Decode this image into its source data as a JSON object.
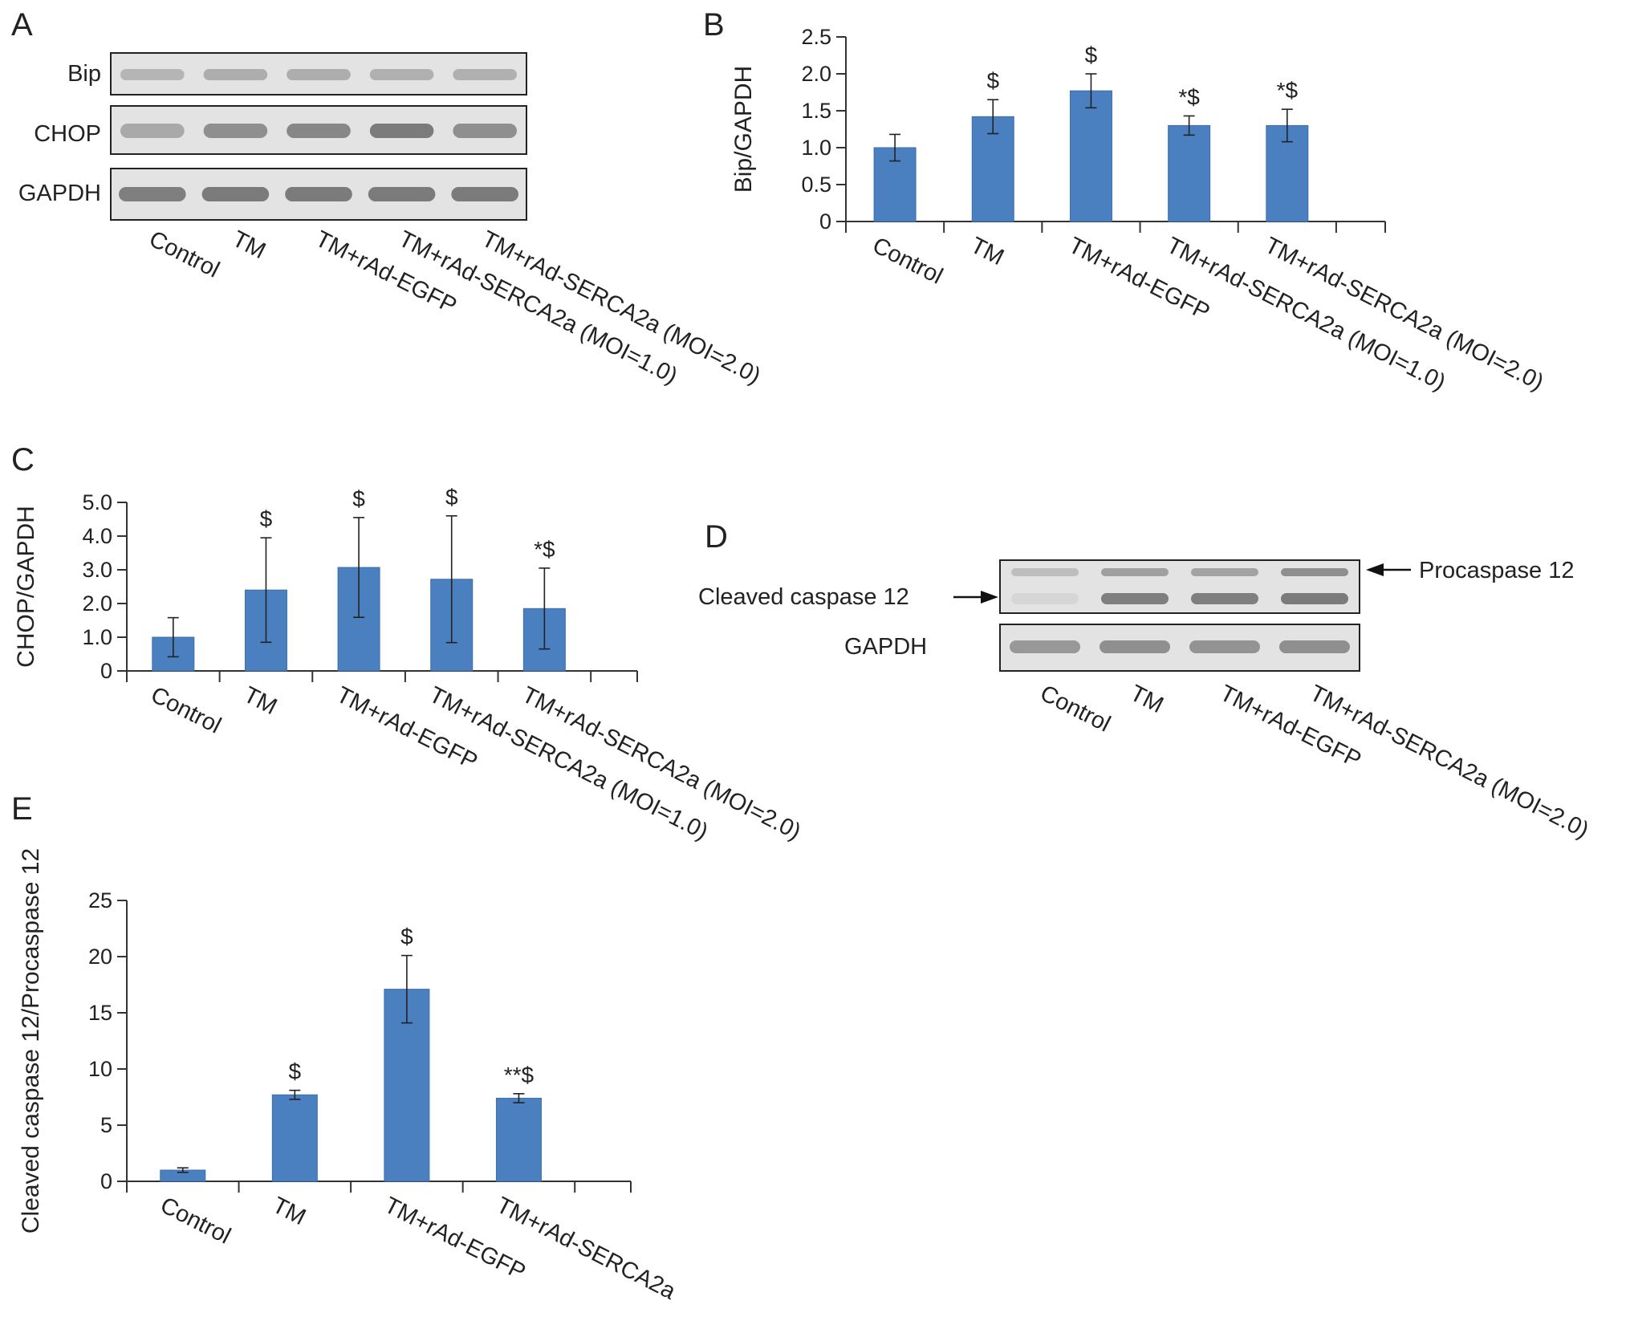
{
  "colors": {
    "bar": "#4a80c0",
    "bar_stroke": "#3d6ea8",
    "axis": "#333333",
    "blot_bg": "#e3e3e3",
    "band": "#3c3c3c"
  },
  "panels": {
    "A": {
      "letter": "A",
      "rows": [
        "Bip",
        "CHOP",
        "GAPDH"
      ],
      "lanes": [
        "Control",
        "TM",
        "TM+rAd-EGFP",
        "TM+rAd-SERCA2a (MOI=1.0)",
        "TM+rAd-SERCA2a (MOI=2.0)"
      ]
    },
    "D": {
      "letter": "D",
      "left_label": "Cleaved caspase 12",
      "right_label": "Procaspase 12",
      "gapdh_label": "GAPDH",
      "lanes": [
        "Control",
        "TM",
        "TM+rAd-EGFP",
        "TM+rAd-SERCA2a (MOI=2.0)"
      ]
    }
  },
  "chart_data": [
    {
      "panel": "B",
      "type": "bar",
      "ylabel": "Bip/GAPDH",
      "categories": [
        "Control",
        "TM",
        "TM+rAd-EGFP",
        "TM+rAd-SERCA2a (MOI=1.0)",
        "TM+rAd-SERCA2a (MOI=2.0)"
      ],
      "values": [
        1.0,
        1.42,
        1.77,
        1.3,
        1.3
      ],
      "errors": [
        0.18,
        0.23,
        0.23,
        0.13,
        0.22
      ],
      "annotations": [
        "",
        "$",
        "$",
        "*$",
        "*$"
      ],
      "ylim": [
        0,
        2.5
      ],
      "yticks": [
        "0",
        "0.5",
        "1.0",
        "1.5",
        "2.0",
        "2.5"
      ]
    },
    {
      "panel": "C",
      "type": "bar",
      "ylabel": "CHOP/GAPDH",
      "categories": [
        "Control",
        "TM",
        "TM+rAd-EGFP",
        "TM+rAd-SERCA2a (MOI=1.0)",
        "TM+rAd-SERCA2a (MOI=2.0)"
      ],
      "values": [
        1.0,
        2.4,
        3.07,
        2.72,
        1.85
      ],
      "errors": [
        0.58,
        1.55,
        1.48,
        1.88,
        1.2
      ],
      "annotations": [
        "",
        "$",
        "$",
        "$",
        "*$"
      ],
      "ylim": [
        0,
        5.0
      ],
      "yticks": [
        "0",
        "1.0",
        "2.0",
        "3.0",
        "4.0",
        "5.0"
      ]
    },
    {
      "panel": "E",
      "type": "bar",
      "ylabel": "Cleaved caspase 12/Procaspase 12",
      "categories": [
        "Control",
        "TM",
        "TM+rAd-EGFP",
        "TM+rAd-SERCA2a"
      ],
      "values": [
        1.0,
        7.7,
        17.1,
        7.4
      ],
      "errors": [
        0.2,
        0.4,
        3.0,
        0.4
      ],
      "annotations": [
        "",
        "$",
        "$",
        "**$"
      ],
      "ylim": [
        0,
        25
      ],
      "yticks": [
        "0",
        "5",
        "10",
        "15",
        "20",
        "25"
      ]
    }
  ]
}
